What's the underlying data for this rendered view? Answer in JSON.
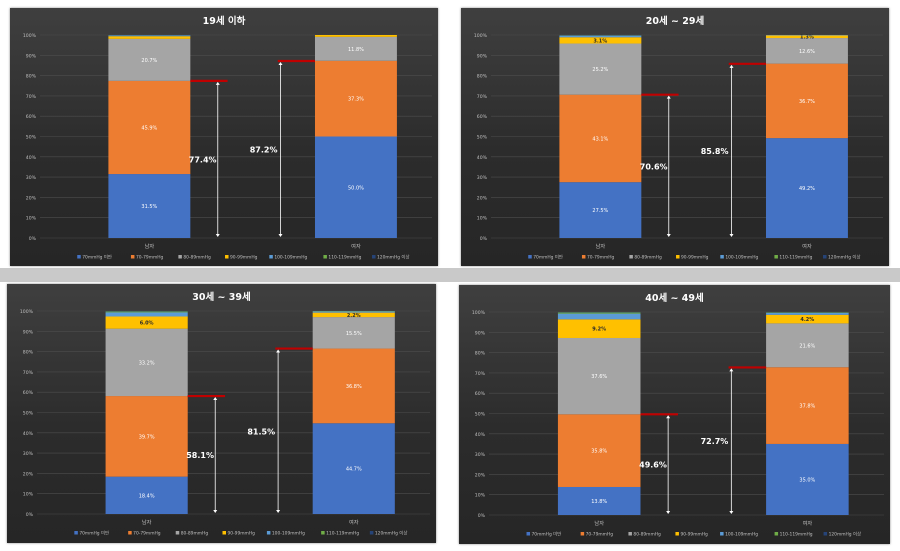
{
  "colors": {
    "segments": [
      "#4472c4",
      "#ed7d31",
      "#a5a5a5",
      "#ffc000",
      "#5b9bd5",
      "#70ad47",
      "#264478"
    ],
    "title": "#ffffff",
    "tick": "#bfbfbf",
    "grid": "#4d4d4d",
    "marker": "#c00000",
    "arrow": "#ffffff"
  },
  "chart_data": [
    {
      "type": "bar",
      "title": "19세 이하",
      "categories": [
        "남자",
        "여자"
      ],
      "ylim": [
        0,
        100
      ],
      "yticks": [
        "0%",
        "10%",
        "20%",
        "30%",
        "40%",
        "50%",
        "60%",
        "70%",
        "80%",
        "90%",
        "100%"
      ],
      "series": [
        {
          "name": "70mmHg 미만",
          "values": [
            31.5,
            50.0
          ],
          "labels": [
            "31.5%",
            "50.0%"
          ]
        },
        {
          "name": "70-79mmHg",
          "values": [
            45.9,
            37.3
          ],
          "labels": [
            "45.9%",
            "37.3%"
          ]
        },
        {
          "name": "80-89mmHg",
          "values": [
            20.7,
            11.8
          ],
          "labels": [
            "20.7%",
            "11.8%"
          ]
        },
        {
          "name": "90-99mmHg",
          "values": [
            1.3,
            0.9
          ],
          "labels": [
            "",
            ""
          ]
        },
        {
          "name": "100-109mmHg",
          "values": [
            0.4,
            0.0
          ],
          "labels": [
            "",
            ""
          ]
        },
        {
          "name": "110-119mmHg",
          "values": [
            0.1,
            0.0
          ],
          "labels": [
            "",
            ""
          ]
        },
        {
          "name": "120mmHg 이상",
          "values": [
            0.1,
            0.0
          ],
          "labels": [
            "",
            ""
          ]
        }
      ],
      "cumulative": [
        77.4,
        87.2
      ],
      "cumulative_labels": [
        "77.4%",
        "87.2%"
      ]
    },
    {
      "type": "bar",
      "title": "20세 ~ 29세",
      "categories": [
        "남자",
        "여자"
      ],
      "ylim": [
        0,
        100
      ],
      "yticks": [
        "0%",
        "10%",
        "20%",
        "30%",
        "40%",
        "50%",
        "60%",
        "70%",
        "80%",
        "90%",
        "100%"
      ],
      "series": [
        {
          "name": "70mmHg 미만",
          "values": [
            27.5,
            49.2
          ],
          "labels": [
            "27.5%",
            "49.2%"
          ]
        },
        {
          "name": "70-79mmHg",
          "values": [
            43.1,
            36.7
          ],
          "labels": [
            "43.1%",
            "36.7%"
          ]
        },
        {
          "name": "80-89mmHg",
          "values": [
            25.2,
            12.6
          ],
          "labels": [
            "25.2%",
            "12.6%"
          ]
        },
        {
          "name": "90-99mmHg",
          "values": [
            3.1,
            1.3
          ],
          "labels": [
            "3.1%",
            "1.3%"
          ]
        },
        {
          "name": "100-109mmHg",
          "values": [
            0.8,
            0.2
          ],
          "labels": [
            "",
            ""
          ]
        },
        {
          "name": "110-119mmHg",
          "values": [
            0.2,
            0.0
          ],
          "labels": [
            "",
            ""
          ]
        },
        {
          "name": "120mmHg 이상",
          "values": [
            0.1,
            0.0
          ],
          "labels": [
            "",
            ""
          ]
        }
      ],
      "cumulative": [
        70.6,
        85.8
      ],
      "cumulative_labels": [
        "70.6%",
        "85.8%"
      ]
    },
    {
      "type": "bar",
      "title": "30세 ~ 39세",
      "categories": [
        "남자",
        "여자"
      ],
      "ylim": [
        0,
        100
      ],
      "yticks": [
        "0%",
        "10%",
        "20%",
        "30%",
        "40%",
        "50%",
        "60%",
        "70%",
        "80%",
        "90%",
        "100%"
      ],
      "series": [
        {
          "name": "70mmHg 미만",
          "values": [
            18.4,
            44.7
          ],
          "labels": [
            "18.4%",
            "44.7%"
          ]
        },
        {
          "name": "70-79mmHg",
          "values": [
            39.7,
            36.8
          ],
          "labels": [
            "39.7%",
            "36.8%"
          ]
        },
        {
          "name": "80-89mmHg",
          "values": [
            33.2,
            15.5
          ],
          "labels": [
            "33.2%",
            "15.5%"
          ]
        },
        {
          "name": "90-99mmHg",
          "values": [
            6.0,
            2.2
          ],
          "labels": [
            "6.0%",
            "2.2%"
          ]
        },
        {
          "name": "100-109mmHg",
          "values": [
            2.0,
            0.6
          ],
          "labels": [
            "",
            ""
          ]
        },
        {
          "name": "110-119mmHg",
          "values": [
            0.5,
            0.2
          ],
          "labels": [
            "",
            ""
          ]
        },
        {
          "name": "120mmHg 이상",
          "values": [
            0.2,
            0.0
          ],
          "labels": [
            "",
            ""
          ]
        }
      ],
      "cumulative": [
        58.1,
        81.5
      ],
      "cumulative_labels": [
        "58.1%",
        "81.5%"
      ]
    },
    {
      "type": "bar",
      "title": "40세 ~ 49세",
      "categories": [
        "남자",
        "여자"
      ],
      "ylim": [
        0,
        100
      ],
      "yticks": [
        "0%",
        "10%",
        "20%",
        "30%",
        "40%",
        "50%",
        "60%",
        "70%",
        "80%",
        "90%",
        "100%"
      ],
      "series": [
        {
          "name": "70mmHg 미만",
          "values": [
            13.8,
            35.0
          ],
          "labels": [
            "13.8%",
            "35.0%"
          ]
        },
        {
          "name": "70-79mmHg",
          "values": [
            35.8,
            37.8
          ],
          "labels": [
            "35.8%",
            "37.8%"
          ]
        },
        {
          "name": "80-89mmHg",
          "values": [
            37.6,
            21.6
          ],
          "labels": [
            "37.6%",
            "21.6%"
          ]
        },
        {
          "name": "90-99mmHg",
          "values": [
            9.2,
            4.2
          ],
          "labels": [
            "9.2%",
            "4.2%"
          ]
        },
        {
          "name": "100-109mmHg",
          "values": [
            2.8,
            1.0
          ],
          "labels": [
            "",
            ""
          ]
        },
        {
          "name": "110-119mmHg",
          "values": [
            0.6,
            0.3
          ],
          "labels": [
            "",
            ""
          ]
        },
        {
          "name": "120mmHg 이상",
          "values": [
            0.2,
            0.1
          ],
          "labels": [
            "",
            ""
          ]
        }
      ],
      "cumulative": [
        49.6,
        72.7
      ],
      "cumulative_labels": [
        "49.6%",
        "72.7%"
      ]
    }
  ]
}
